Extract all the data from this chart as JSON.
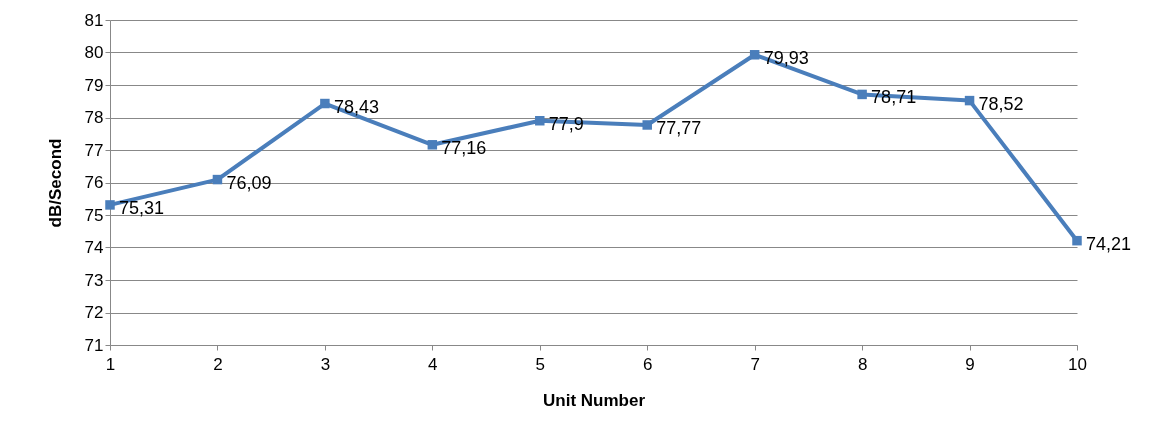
{
  "chart_data": {
    "type": "line",
    "xlabel": "Unit Number",
    "ylabel": "dB/Second",
    "x": [
      1,
      2,
      3,
      4,
      5,
      6,
      7,
      8,
      9,
      10
    ],
    "series": [
      {
        "color": "#4a7ebb",
        "values": [
          75.31,
          76.09,
          78.43,
          77.16,
          77.9,
          77.77,
          79.93,
          78.71,
          78.52,
          74.21
        ],
        "value_labels": [
          "75,31",
          "76,09",
          "78,43",
          "77,16",
          "77,9",
          "77,77",
          "79,93",
          "78,71",
          "78,52",
          "74,21"
        ]
      }
    ],
    "xlim": [
      1,
      10
    ],
    "xticks": [
      1,
      2,
      3,
      4,
      5,
      6,
      7,
      8,
      9,
      10
    ],
    "ylim": [
      71,
      81
    ],
    "yticks": [
      71,
      72,
      73,
      74,
      75,
      76,
      77,
      78,
      79,
      80,
      81
    ],
    "grid": "y",
    "marker": "square",
    "line_style": "solid"
  }
}
